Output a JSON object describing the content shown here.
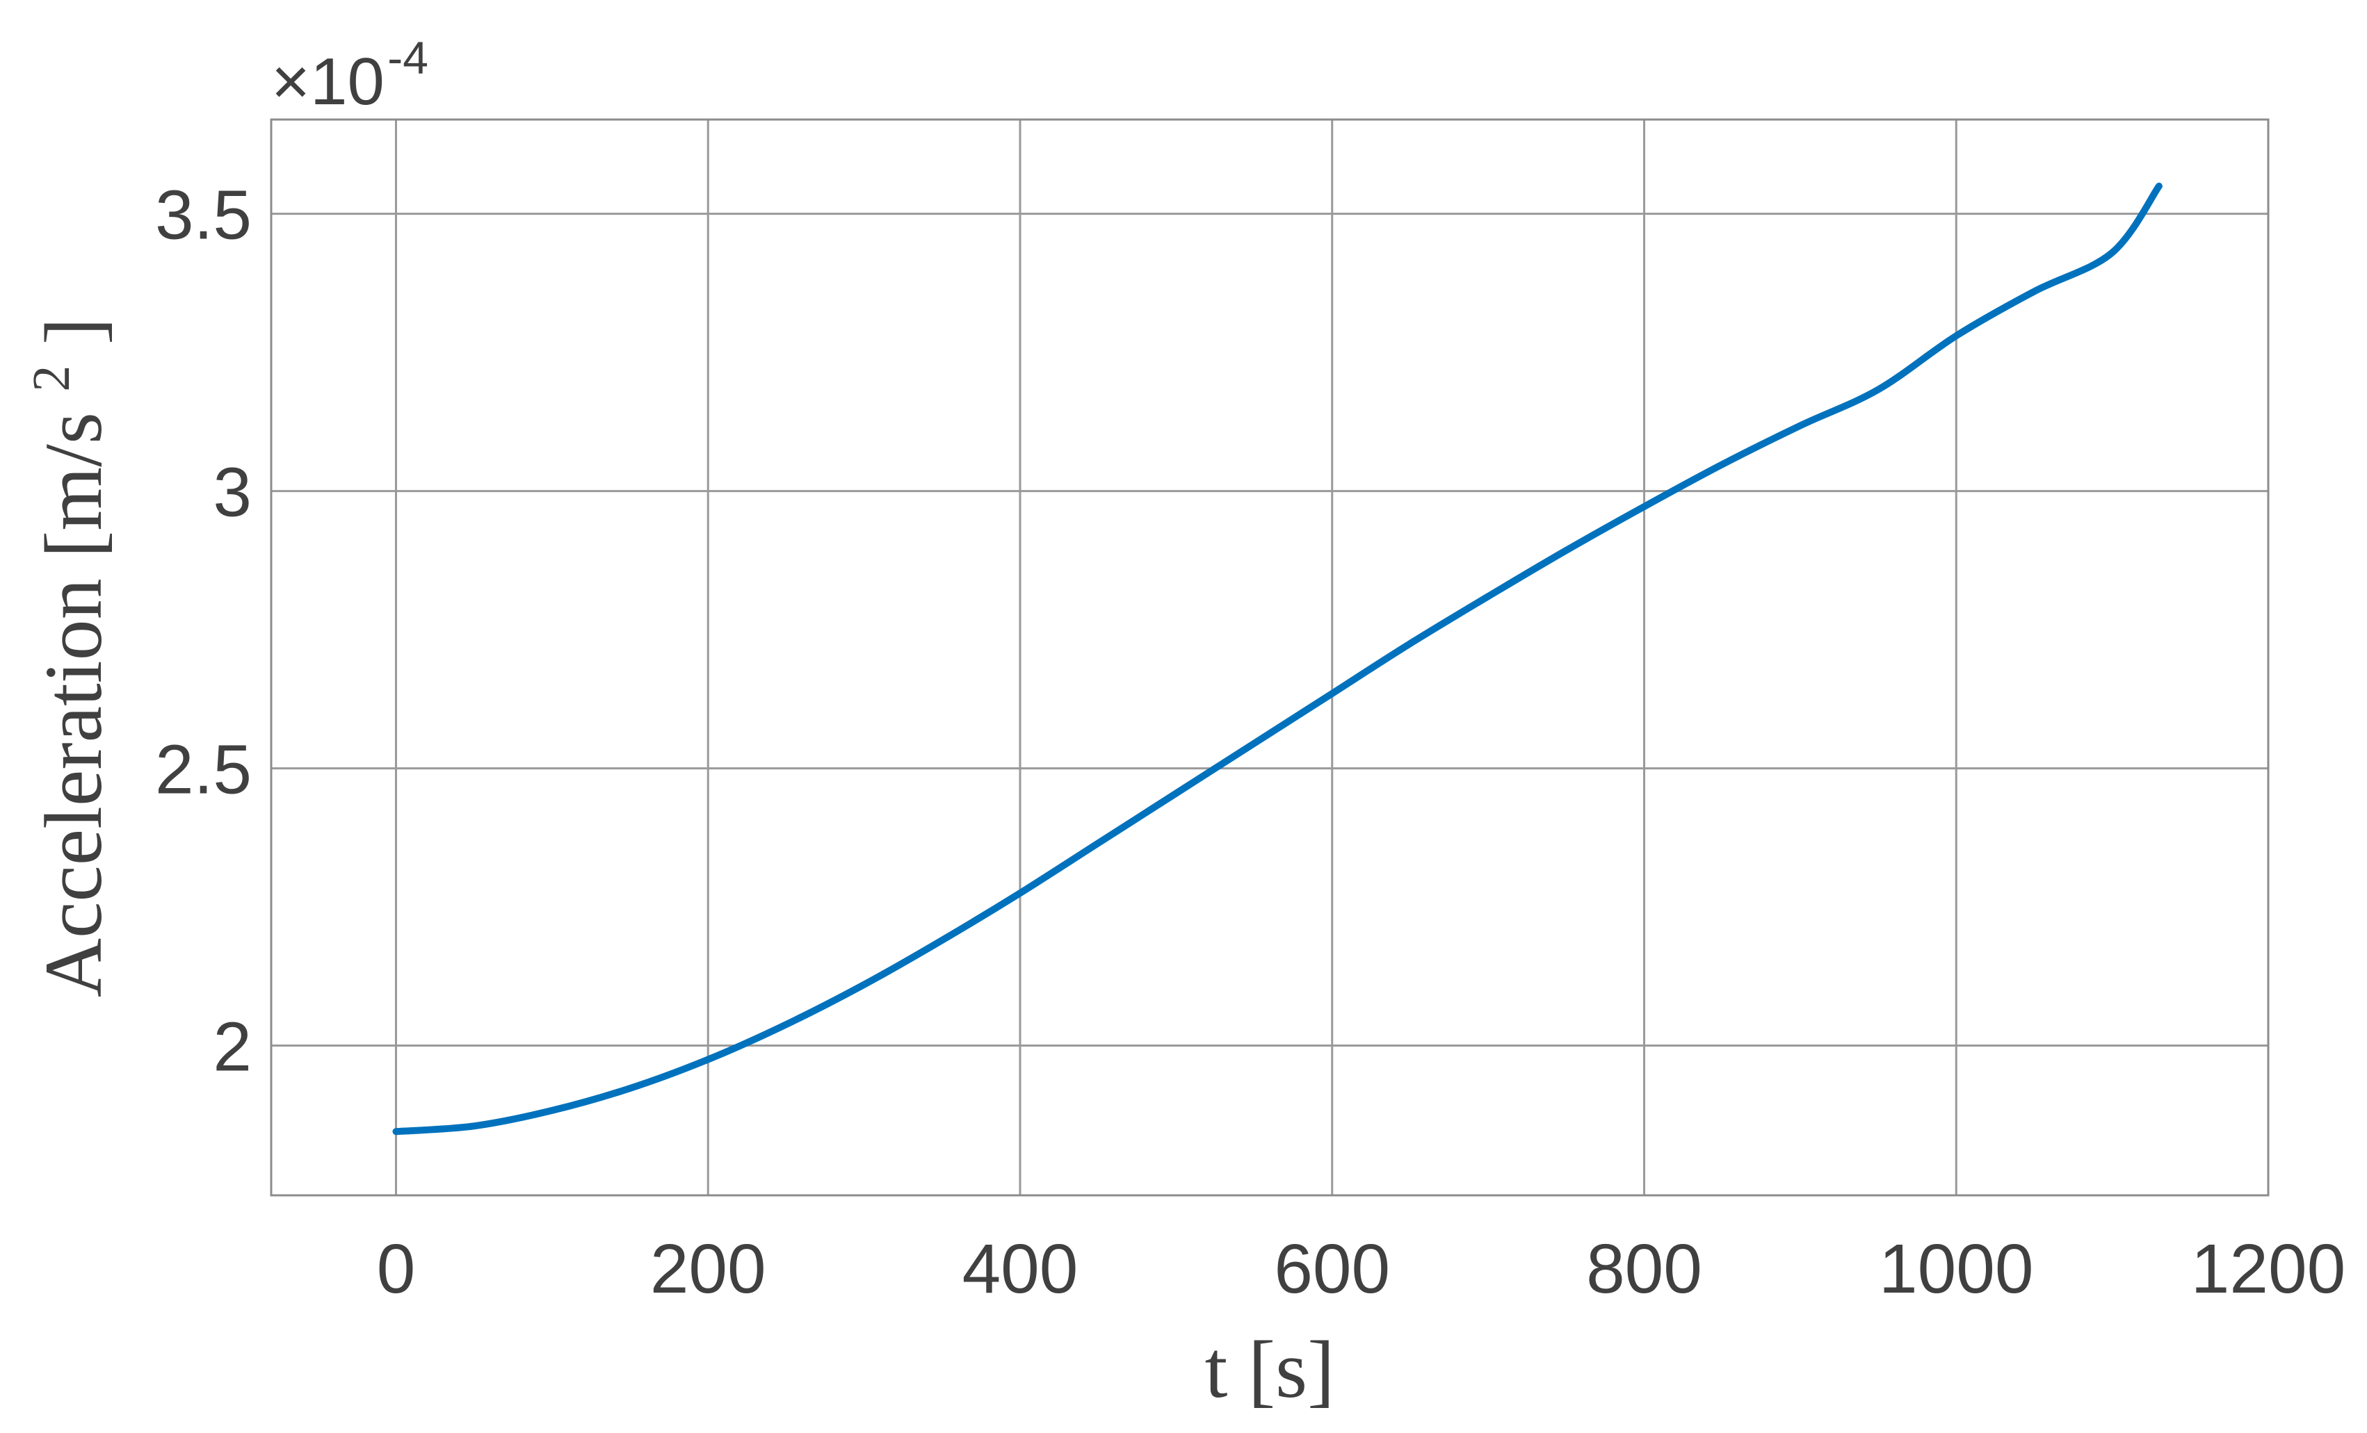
{
  "chart_data": {
    "type": "line",
    "xlabel": "t [s]",
    "ylabel": "Acceleration [m/s²]",
    "ylabel_parts": {
      "main": "Acceleration [m/s",
      "sup": "2",
      "close": "]"
    },
    "y_exponent": {
      "base": "×10",
      "exp": "-4"
    },
    "xlim": [
      -80,
      1200
    ],
    "ylim": [
      1.73,
      3.67
    ],
    "x_ticks": [
      0,
      200,
      400,
      600,
      800,
      1000,
      1200
    ],
    "x_tick_labels": [
      "0",
      "200",
      "400",
      "600",
      "800",
      "1000",
      "1200"
    ],
    "y_ticks": [
      2,
      2.5,
      3,
      3.5
    ],
    "y_tick_labels": [
      "2",
      "2.5",
      "3",
      "3.5"
    ],
    "grid": true,
    "series": [
      {
        "color": "#0072bd",
        "x": [
          0,
          50,
          100,
          150,
          200,
          250,
          300,
          350,
          400,
          450,
          500,
          550,
          600,
          650,
          700,
          750,
          800,
          850,
          900,
          950,
          1000,
          1050,
          1100,
          1130
        ],
        "y": [
          1.845,
          1.855,
          1.883,
          1.923,
          1.975,
          2.038,
          2.11,
          2.19,
          2.275,
          2.365,
          2.455,
          2.545,
          2.635,
          2.725,
          2.81,
          2.893,
          2.972,
          3.048,
          3.118,
          3.183,
          3.28,
          3.36,
          3.43,
          3.55
        ]
      }
    ]
  }
}
